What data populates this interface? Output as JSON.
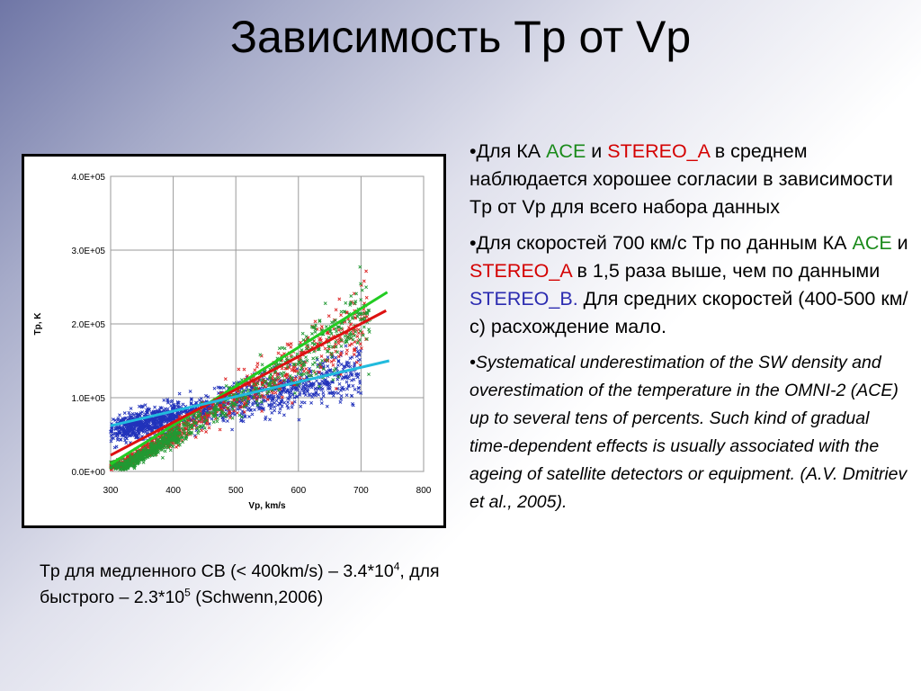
{
  "title": "Зависимость Tp от Vp",
  "chart_data": {
    "type": "scatter",
    "xlabel": "Vp, km/s",
    "ylabel": "Tp, K",
    "xlim": [
      300,
      800
    ],
    "ylim": [
      0,
      400000
    ],
    "x_ticks": [
      "300",
      "400",
      "500",
      "600",
      "700",
      "800"
    ],
    "y_ticks": [
      "0.0E+00",
      "1.0E+05",
      "2.0E+05",
      "3.0E+05",
      "4.0E+05"
    ],
    "grid": true,
    "marker": "x",
    "series": [
      {
        "color": "#2233bb",
        "points_estimated": 1400
      },
      {
        "color": "#dd2222",
        "points_estimated": 900
      },
      {
        "color": "#229933",
        "points_estimated": 900
      }
    ],
    "fit_lines": [
      {
        "color": "#22cc22",
        "x": [
          300,
          742
        ],
        "y": [
          10000,
          243000
        ]
      },
      {
        "color": "#dd1111",
        "x": [
          300,
          740
        ],
        "y": [
          22000,
          218000
        ]
      },
      {
        "color": "#22bbdd",
        "x": [
          300,
          745
        ],
        "y": [
          62000,
          150000
        ]
      }
    ]
  },
  "bullets": {
    "b1": {
      "p1": "•Для КА ",
      "ace": "ACE",
      "p2": "  и ",
      "stereo_a": "STEREO_A",
      "p3": " в среднем наблюдается хорошее согласии в зависимости Tp от Vp для всего набора данных"
    },
    "b2": {
      "p1": "•Для скоростей 700 км/с Tp по данным КА  ",
      "ace": "ACE",
      "p2": " и ",
      "stereo_a": "STEREO_A",
      "p3": " в 1,5 раза выше, чем по данными ",
      "stereo_b": "STEREO_B.",
      "p4": " Для средних скоростей (400-500 км/с) расхождение мало."
    },
    "b3": "•Systematical underestimation of the SW density and overestimation of the temperature in the OMNI-2 (ACE) up to several tens of percents. Such kind of gradual time-dependent effects is usually associated with the ageing of satellite detectors or equipment. (A.V. Dmitriev et al., 2005)."
  },
  "footnote": {
    "p1": "Tp  для медленного СВ (< 400km/s) – 3.4*10",
    "exp1": "4",
    "p2": ",  для быстрого – 2.3*10",
    "exp2": "5",
    "p3": " (Schwenn,2006)"
  },
  "colors": {
    "ace": "#1a8a1a",
    "stereo_a": "#d40000",
    "stereo_b": "#2b2bb0"
  }
}
